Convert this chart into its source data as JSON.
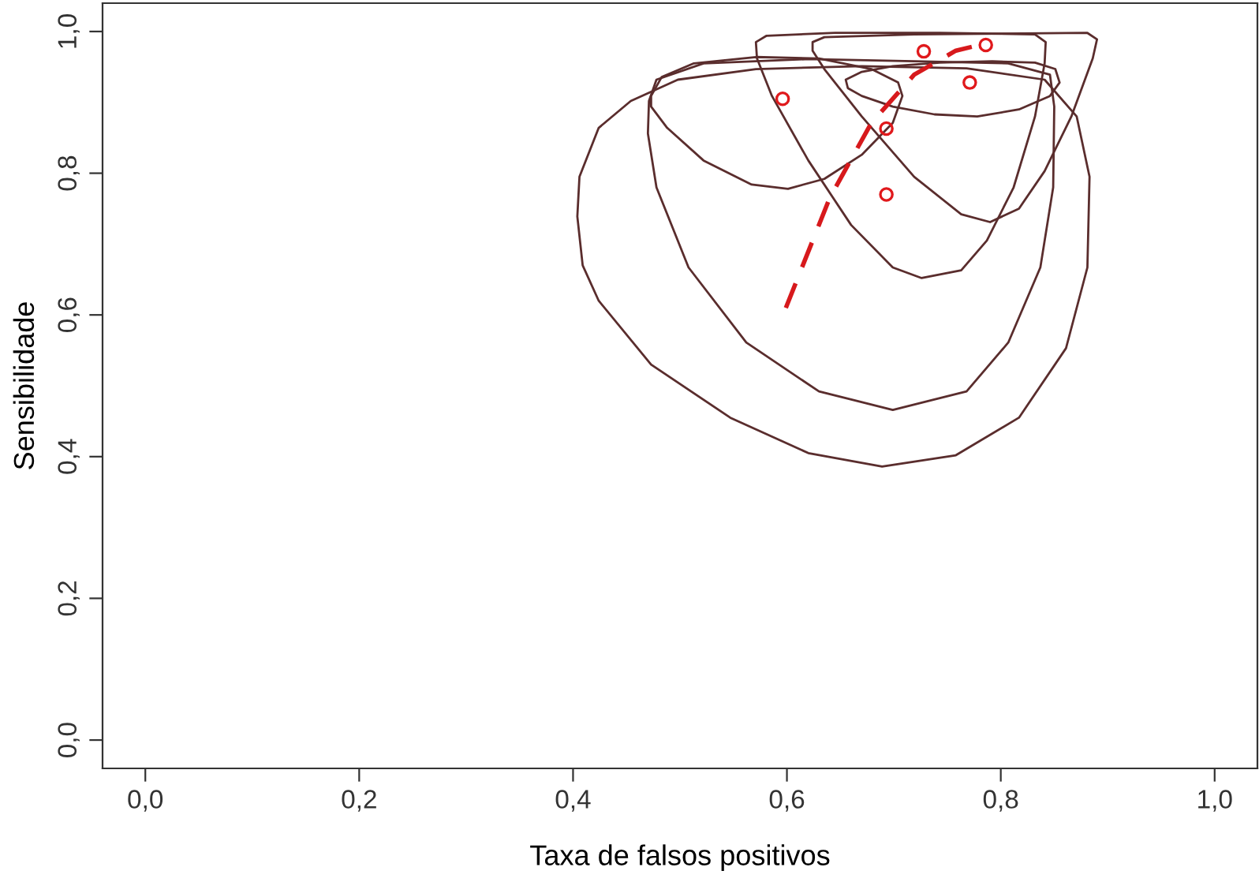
{
  "chart_data": {
    "type": "line",
    "xlabel": "Taxa de falsos positivos",
    "ylabel": "Sensibilidade",
    "xlim": [
      -0.04,
      1.04
    ],
    "ylim": [
      -0.04,
      1.04
    ],
    "xticks": [
      {
        "value": 0,
        "label": "0,0"
      },
      {
        "value": 0.2,
        "label": "0,2"
      },
      {
        "value": 0.4,
        "label": "0,4"
      },
      {
        "value": 0.6,
        "label": "0,6"
      },
      {
        "value": 0.8,
        "label": "0,8"
      },
      {
        "value": 1,
        "label": "1,0"
      }
    ],
    "yticks": [
      {
        "value": 0,
        "label": "0,0"
      },
      {
        "value": 0.2,
        "label": "0,2"
      },
      {
        "value": 0.4,
        "label": "0,4"
      },
      {
        "value": 0.6,
        "label": "0,6"
      },
      {
        "value": 0.8,
        "label": "0,8"
      },
      {
        "value": 1,
        "label": "1,0"
      }
    ],
    "grid": false,
    "series": [
      {
        "type": "line",
        "color": "#d7191c",
        "line_style": "dashed",
        "x": [
          0.599,
          0.64,
          0.679,
          0.719,
          0.758,
          0.786
        ],
        "values": [
          0.61,
          0.765,
          0.871,
          0.939,
          0.973,
          0.983
        ]
      },
      {
        "type": "scatter",
        "color": "#e0191c",
        "marker": "circle",
        "x": [
          0.596,
          0.693,
          0.693,
          0.728,
          0.771,
          0.786
        ],
        "values": [
          0.905,
          0.863,
          0.77,
          0.972,
          0.928,
          0.981
        ]
      }
    ]
  }
}
